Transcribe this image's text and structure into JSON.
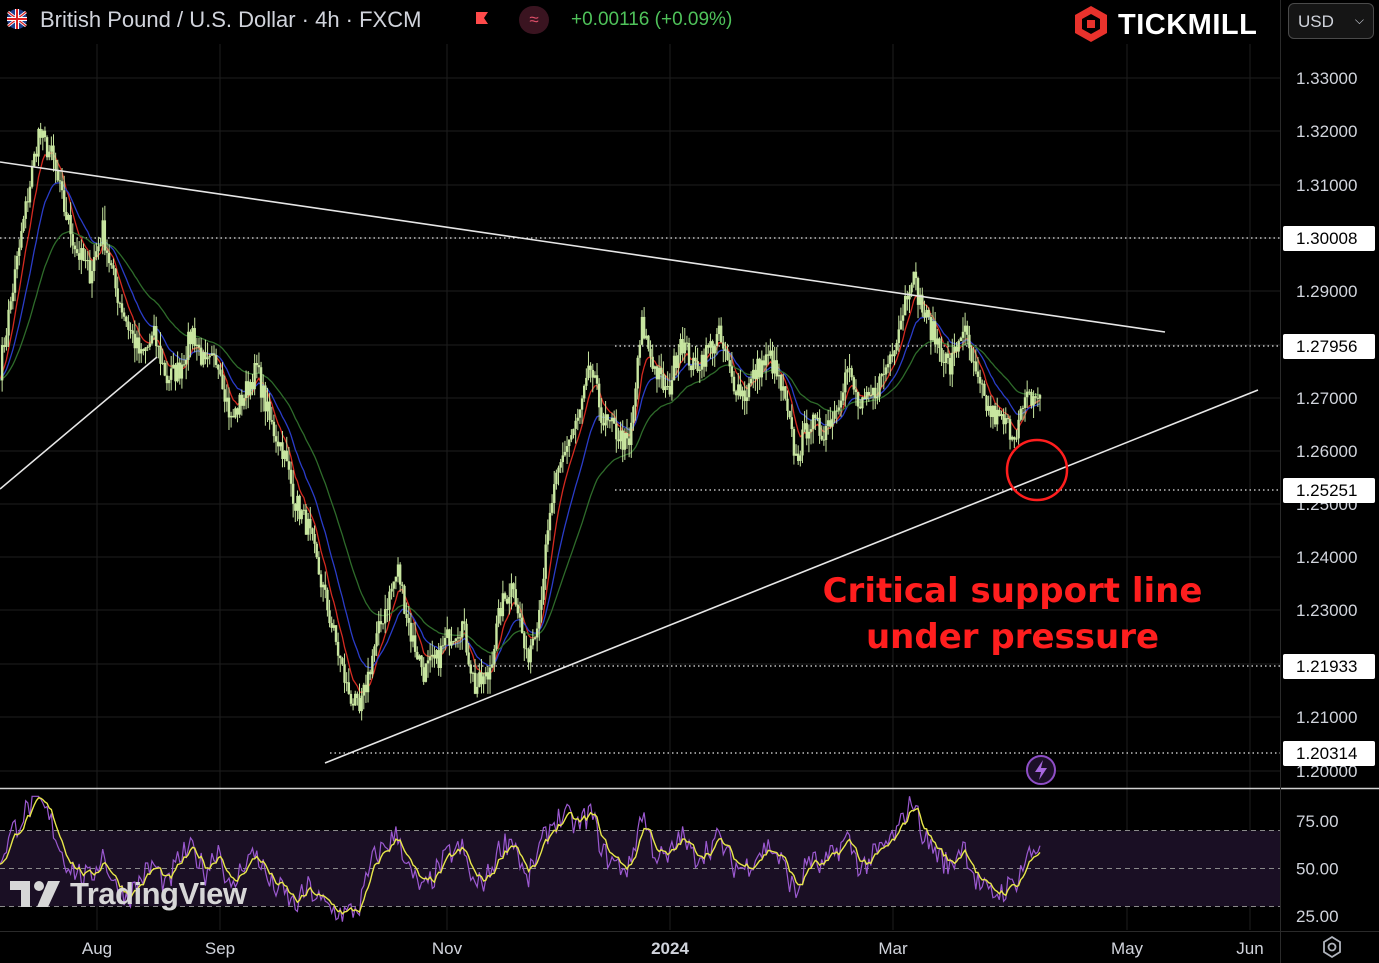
{
  "header": {
    "symbol_title": "British Pound / U.S. Dollar · 4h · FXCM",
    "change": "+0.00116 (+0.09%)",
    "flag_icon": "uk-us-flag-icon",
    "indicator_icon": "indicator-icon"
  },
  "logo": {
    "text": "TICKMILL",
    "icon": "tickmill-logo-icon"
  },
  "currency_select": {
    "value": "USD"
  },
  "watermark": {
    "text": "TradingView"
  },
  "annotation": {
    "line1": "Critical support line",
    "line2": "under pressure"
  },
  "colors": {
    "background": "#000000",
    "candle": "#c8e6a0",
    "ema_fast": "#d42a20",
    "ema_mid": "#2a3cc8",
    "ema_slow": "#2e6b2a",
    "trendline": "#e6e6e6",
    "annotation": "#ff1e1e",
    "rsi": "#9b59d0",
    "rsi_signal": "#e8e84a",
    "rsi_band": "#1a0f24",
    "change": "#4fc25a"
  },
  "chart_data": [
    {
      "type": "line",
      "title": "British Pound / U.S. Dollar · 4h · FXCM",
      "x_tick_labels": [
        "Aug",
        "Sep",
        "Nov",
        "2024",
        "Mar",
        "May",
        "Jun"
      ],
      "y_tick_labels": [
        "1.33000",
        "1.32000",
        "1.31000",
        "1.30000",
        "1.29000",
        "1.28000",
        "1.27000",
        "1.26000",
        "1.25000",
        "1.24000",
        "1.23000",
        "1.22000",
        "1.21000",
        "1.20000"
      ],
      "ylim": [
        1.2,
        1.335
      ],
      "grid": true,
      "price_levels": [
        "1.30008",
        "1.27956",
        "1.25251",
        "1.21933",
        "1.20314"
      ],
      "series": [
        {
          "values": [
            1.27,
            1.285,
            1.3,
            1.3142,
            1.31,
            1.3,
            1.292,
            1.288,
            1.296,
            1.285,
            1.278,
            1.272,
            1.276,
            1.268,
            1.27,
            1.277,
            1.27,
            1.272,
            1.26,
            1.265,
            1.27,
            1.26,
            1.255,
            1.245,
            1.24,
            1.23,
            1.22,
            1.21,
            1.205,
            1.216,
            1.225,
            1.232,
            1.22,
            1.213,
            1.215,
            1.22,
            1.222,
            1.21,
            1.212,
            1.225,
            1.23,
            1.215,
            1.225,
            1.245,
            1.255,
            1.26,
            1.27,
            1.26,
            1.258,
            1.255,
            1.278,
            1.27,
            1.265,
            1.276,
            1.27,
            1.273,
            1.276,
            1.268,
            1.265,
            1.27,
            1.272,
            1.265,
            1.253,
            1.26,
            1.258,
            1.262,
            1.27,
            1.262,
            1.265,
            1.27,
            1.278,
            1.288,
            1.28,
            1.275,
            1.27,
            1.278,
            1.268,
            1.262,
            1.26,
            1.258,
            1.264,
            1.265
          ]
        }
      ]
    },
    {
      "type": "line",
      "title": "",
      "y_tick_labels": [
        "75.00",
        "50.00",
        "25.00"
      ],
      "ylim": [
        20,
        90
      ],
      "band": [
        30,
        70
      ],
      "series": [
        {
          "values": [
            55,
            70,
            80,
            86,
            74,
            55,
            48,
            44,
            58,
            40,
            35,
            45,
            52,
            40,
            56,
            60,
            48,
            62,
            36,
            54,
            58,
            42,
            38,
            30,
            40,
            32,
            28,
            26,
            30,
            54,
            62,
            68,
            46,
            38,
            48,
            58,
            60,
            40,
            46,
            62,
            66,
            42,
            60,
            74,
            78,
            72,
            80,
            58,
            52,
            50,
            80,
            58,
            54,
            68,
            56,
            60,
            66,
            52,
            50,
            58,
            62,
            52,
            36,
            56,
            50,
            58,
            66,
            50,
            56,
            62,
            70,
            88,
            66,
            58,
            50,
            64,
            44,
            36,
            38,
            42,
            56,
            62
          ]
        }
      ]
    }
  ]
}
